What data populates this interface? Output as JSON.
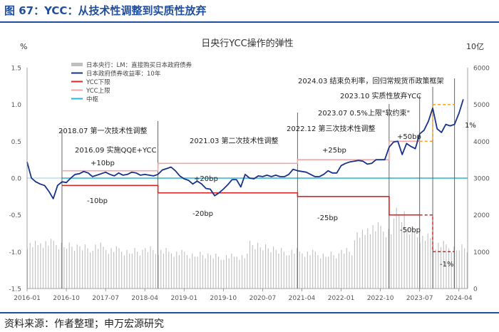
{
  "figure": {
    "title": "图 67：YCC：从技术性调整到实质性放弃",
    "source": "资料来源：作者整理；申万宏源研究"
  },
  "colors": {
    "accent": "#1f4e9c",
    "jgb": "#17338b",
    "bar": "#bfbfbf",
    "upper": "#f2a7a7",
    "lower": "#d62728",
    "center": "#2bb3d8",
    "annot_orange": "#f5a623"
  },
  "chart_data": {
    "type": "line",
    "title": "日央行YCC操作的弹性",
    "ylabel_left": "%",
    "ylabel_right": "10亿",
    "ylim_left": [
      -1.5,
      1.5
    ],
    "ylim_right": [
      0,
      6000
    ],
    "yticks_left": [
      "1.5",
      "1.0",
      "0.5",
      "0.0",
      "-0.5",
      "-1.0",
      "-1.5"
    ],
    "yticks_right": [
      "6000",
      "5000",
      "4000",
      "3000",
      "2000",
      "1000",
      "0"
    ],
    "xlim": [
      "2016-01",
      "2024-06"
    ],
    "xticks": [
      "2016-01",
      "2016-10",
      "2017-07",
      "2018-04",
      "2019-01",
      "2019-10",
      "2020-07",
      "2021-04",
      "2022-01",
      "2022-10",
      "2023-07",
      "2024-04"
    ],
    "legend": {
      "placement": "top-left",
      "entries": [
        "日本央行：LM：直接购买日本政府债券",
        "日本政府债券收益率：10年",
        "YCC下限",
        "YCC上限",
        "中枢"
      ]
    },
    "series": [
      {
        "name": "日本政府债券收益率：10年",
        "axis": "left",
        "x": [
          "2016-01",
          "2016-02",
          "2016-03",
          "2016-04",
          "2016-05",
          "2016-06",
          "2016-07",
          "2016-08",
          "2016-09",
          "2016-10",
          "2016-11",
          "2016-12",
          "2017-01",
          "2017-02",
          "2017-03",
          "2017-04",
          "2017-05",
          "2017-06",
          "2017-07",
          "2017-08",
          "2017-09",
          "2017-10",
          "2017-11",
          "2017-12",
          "2018-01",
          "2018-02",
          "2018-03",
          "2018-04",
          "2018-05",
          "2018-06",
          "2018-07",
          "2018-08",
          "2018-09",
          "2018-10",
          "2018-11",
          "2018-12",
          "2019-01",
          "2019-02",
          "2019-03",
          "2019-04",
          "2019-05",
          "2019-06",
          "2019-07",
          "2019-08",
          "2019-09",
          "2019-10",
          "2019-11",
          "2019-12",
          "2020-01",
          "2020-02",
          "2020-03",
          "2020-04",
          "2020-05",
          "2020-06",
          "2020-07",
          "2020-08",
          "2020-09",
          "2020-10",
          "2020-11",
          "2020-12",
          "2021-01",
          "2021-02",
          "2021-03",
          "2021-04",
          "2021-05",
          "2021-06",
          "2021-07",
          "2021-08",
          "2021-09",
          "2021-10",
          "2021-11",
          "2021-12",
          "2022-01",
          "2022-02",
          "2022-03",
          "2022-04",
          "2022-05",
          "2022-06",
          "2022-07",
          "2022-08",
          "2022-09",
          "2022-10",
          "2022-11",
          "2022-12",
          "2023-01",
          "2023-02",
          "2023-03",
          "2023-04",
          "2023-05",
          "2023-06",
          "2023-07",
          "2023-08",
          "2023-09",
          "2023-10",
          "2023-11",
          "2023-12",
          "2024-01",
          "2024-02",
          "2024-03",
          "2024-04",
          "2024-05"
        ],
        "values": [
          0.22,
          0.0,
          -0.05,
          -0.08,
          -0.1,
          -0.18,
          -0.28,
          -0.1,
          -0.05,
          -0.06,
          0.0,
          0.05,
          0.06,
          0.09,
          0.07,
          0.02,
          0.04,
          0.06,
          0.08,
          0.05,
          0.03,
          0.07,
          0.04,
          0.05,
          0.08,
          0.07,
          0.04,
          0.05,
          0.04,
          0.03,
          0.05,
          0.11,
          0.13,
          0.15,
          0.1,
          0.03,
          -0.01,
          -0.03,
          -0.08,
          -0.04,
          -0.08,
          -0.14,
          -0.15,
          -0.24,
          -0.2,
          -0.15,
          -0.09,
          -0.02,
          -0.02,
          -0.12,
          0.05,
          0.0,
          -0.01,
          0.03,
          0.02,
          0.04,
          0.02,
          0.04,
          0.02,
          0.02,
          0.05,
          0.12,
          0.1,
          0.09,
          0.08,
          0.05,
          0.02,
          0.02,
          0.05,
          0.1,
          0.07,
          0.07,
          0.17,
          0.2,
          0.22,
          0.23,
          0.24,
          0.23,
          0.19,
          0.2,
          0.25,
          0.25,
          0.25,
          0.42,
          0.49,
          0.5,
          0.32,
          0.47,
          0.43,
          0.4,
          0.6,
          0.65,
          0.77,
          0.95,
          0.67,
          0.62,
          0.73,
          0.71,
          0.73,
          0.88,
          1.07
        ]
      },
      {
        "name": "YCC上限",
        "axis": "left",
        "x": [
          "2016-09",
          "2018-07",
          "2018-07",
          "2021-03",
          "2021-03",
          "2022-12",
          "2022-12",
          "2023-07"
        ],
        "values": [
          0.1,
          0.1,
          0.2,
          0.2,
          0.25,
          0.25,
          0.5,
          0.5
        ]
      },
      {
        "name": "YCC下限",
        "axis": "left",
        "x": [
          "2016-09",
          "2018-07",
          "2018-07",
          "2021-03",
          "2021-03",
          "2022-12",
          "2022-12",
          "2023-07"
        ],
        "values": [
          -0.1,
          -0.1,
          -0.2,
          -0.2,
          -0.25,
          -0.25,
          -0.5,
          -0.5
        ]
      },
      {
        "name": "中枢",
        "axis": "left",
        "x": [
          "2016-09",
          "2024-05"
        ],
        "values": [
          0.0,
          0.0
        ]
      },
      {
        "name": "日本央行：LM：直接购买日本政府债券",
        "axis": "right",
        "style": "bars",
        "x": [
          "2016-01",
          "2016-04",
          "2016-07",
          "2016-10",
          "2017-01",
          "2017-04",
          "2017-07",
          "2017-10",
          "2018-01",
          "2018-04",
          "2018-07",
          "2018-10",
          "2019-01",
          "2019-04",
          "2019-07",
          "2019-10",
          "2020-01",
          "2020-04",
          "2020-07",
          "2020-10",
          "2021-01",
          "2021-04",
          "2021-07",
          "2021-10",
          "2022-01",
          "2022-04",
          "2022-07",
          "2022-10",
          "2023-01",
          "2023-04",
          "2023-07",
          "2023-10",
          "2024-01",
          "2024-04"
        ],
        "values": [
          1300,
          1350,
          1300,
          1250,
          1200,
          1250,
          1150,
          1100,
          1100,
          1150,
          1100,
          1050,
          1000,
          1000,
          950,
          950,
          950,
          1300,
          1200,
          1100,
          1100,
          1050,
          1000,
          1000,
          1100,
          1600,
          1800,
          1700,
          2200,
          1700,
          1500,
          1300,
          1200,
          1200
        ]
      }
    ],
    "extensions": [
      {
        "label": "upper-dashed",
        "x": [
          "2023-07",
          "2023-10",
          "2023-10",
          "2024-03"
        ],
        "values": [
          0.5,
          0.5,
          1.0,
          1.0
        ]
      },
      {
        "label": "lower-dashed",
        "x": [
          "2023-07",
          "2023-10",
          "2023-10",
          "2024-03"
        ],
        "values": [
          -0.5,
          -0.5,
          -1.0,
          -1.0
        ]
      }
    ],
    "event_lines": [
      "2016-09",
      "2018-07",
      "2021-03",
      "2022-12",
      "2023-07",
      "2023-10",
      "2024-03"
    ],
    "annotations": [
      {
        "text": "2016.09 实施QQE+YCC",
        "x": "2016-09"
      },
      {
        "text": "2018.07 第一次技术性调整",
        "x": "2018-07"
      },
      {
        "text": "2021.03 第二次技术性调整",
        "x": "2021-03"
      },
      {
        "text": "2022.12 第三次技术性调整",
        "x": "2022-12"
      },
      {
        "text": "2023.07 0.5%上限\"软约束\"",
        "x": "2023-07"
      },
      {
        "text": "2023.10 实质性放弃YCC",
        "x": "2023-10"
      },
      {
        "text": "2024.03 结束负利率，回归常规货币政策框架",
        "x": "2024-03"
      }
    ],
    "band_labels_upper": [
      "+10bp",
      "+20bp",
      "+25bp",
      "+50bp",
      "1%"
    ],
    "band_labels_lower": [
      "-10bp",
      "-20bp",
      "-25bp",
      "-50bp",
      "-1%"
    ]
  }
}
